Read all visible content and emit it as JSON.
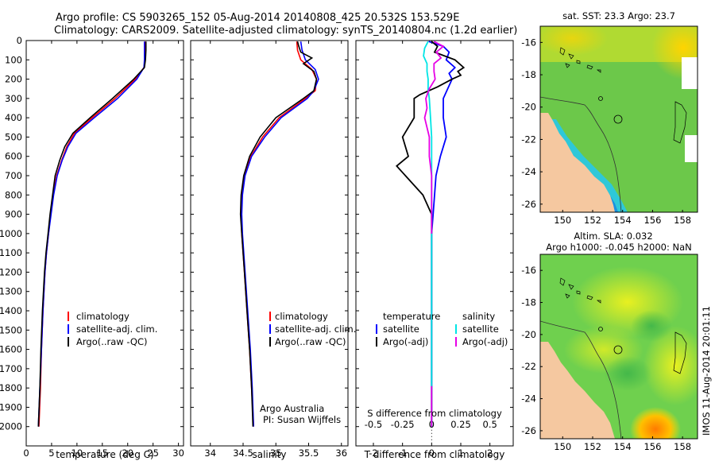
{
  "header": {
    "line1": "Argo profile: CS 5903265_152 05-Aug-2014 20140808_425 20.532S 153.529E",
    "line2": "Climatology: CARS2009. Satellite-adjusted climatology: synTS_20140804.nc (1.2d earlier)"
  },
  "footer": {
    "credit1": "Argo Australia",
    "credit2": "PI: Susan Wijffels",
    "stamp": "IMOS 11-Aug-2014 20:01:11"
  },
  "colors": {
    "climatology": "#ff0000",
    "satellite": "#0000ff",
    "argo": "#000000",
    "sal_satellite": "#00e5e5",
    "sal_argo": "#e600e6",
    "land": "#f5c8a0"
  },
  "chart_data": [
    {
      "type": "line",
      "xlabel": "temperature (deg C)",
      "ylabel": "",
      "xlim": [
        0,
        31
      ],
      "ylim": [
        2100,
        0
      ],
      "xticks": [
        0,
        5,
        10,
        15,
        20,
        25,
        30
      ],
      "yticks": [
        0,
        100,
        200,
        300,
        400,
        500,
        600,
        700,
        800,
        900,
        1000,
        1100,
        1200,
        1300,
        1400,
        1500,
        1600,
        1700,
        1800,
        1900,
        2000
      ],
      "legend": [
        "climatology",
        "satellite-adj. clim.",
        "Argo(..raw -QC)"
      ],
      "series": [
        {
          "name": "climatology",
          "color": "red",
          "depth": [
            5,
            50,
            100,
            140,
            200,
            300,
            400,
            480,
            550,
            620,
            700,
            800,
            900,
            1000,
            1100,
            1200,
            1400,
            1600,
            1800,
            2000
          ],
          "values": [
            23.5,
            23.5,
            23.4,
            23.2,
            21.5,
            17.5,
            13.0,
            9.5,
            8.0,
            7.0,
            6.0,
            5.3,
            4.8,
            4.4,
            4.0,
            3.7,
            3.3,
            3.0,
            2.8,
            2.5
          ]
        },
        {
          "name": "satellite-adj. clim.",
          "color": "blue",
          "depth": [
            5,
            50,
            100,
            140,
            200,
            300,
            400,
            480,
            550,
            620,
            700,
            800,
            900,
            1000,
            1100,
            1200,
            1400,
            1600,
            1800,
            2000
          ],
          "values": [
            23.3,
            23.3,
            23.3,
            23.2,
            21.8,
            18.0,
            13.4,
            9.8,
            8.2,
            7.1,
            6.1,
            5.4,
            4.9,
            4.4,
            4.0,
            3.7,
            3.3,
            3.0,
            2.7,
            2.4
          ]
        },
        {
          "name": "Argo(..raw -QC)",
          "color": "black",
          "depth": [
            5,
            50,
            100,
            140,
            200,
            300,
            400,
            480,
            550,
            620,
            700,
            800,
            900,
            1000,
            1100,
            1200,
            1400,
            1600,
            1800,
            2000
          ],
          "values": [
            23.6,
            23.6,
            23.5,
            23.3,
            21.2,
            17.0,
            12.6,
            9.2,
            7.6,
            6.6,
            5.7,
            5.2,
            4.7,
            4.3,
            3.9,
            3.6,
            3.2,
            2.9,
            2.7,
            2.4
          ]
        }
      ]
    },
    {
      "type": "line",
      "xlabel": "salinity",
      "ylabel": "",
      "xlim": [
        33.7,
        36.1
      ],
      "ylim": [
        2100,
        0
      ],
      "xticks": [
        34,
        34.5,
        35,
        35.5,
        36
      ],
      "legend": [
        "climatology",
        "satellite-adj. clim.",
        "Argo(..raw -QC)"
      ],
      "series": [
        {
          "name": "climatology",
          "color": "red",
          "depth": [
            5,
            50,
            100,
            150,
            200,
            260,
            300,
            400,
            500,
            600,
            700,
            800,
            900,
            1000,
            1200,
            1400,
            1600,
            1800,
            2000
          ],
          "values": [
            35.32,
            35.33,
            35.38,
            35.55,
            35.62,
            35.6,
            35.45,
            35.05,
            34.8,
            34.62,
            34.52,
            34.48,
            34.47,
            34.48,
            34.52,
            34.56,
            34.6,
            34.63,
            34.66
          ]
        },
        {
          "name": "satellite-adj. clim.",
          "color": "blue",
          "depth": [
            5,
            50,
            100,
            150,
            200,
            260,
            300,
            400,
            500,
            600,
            700,
            800,
            900,
            1000,
            1200,
            1400,
            1600,
            1800,
            2000
          ],
          "values": [
            35.38,
            35.4,
            35.45,
            35.6,
            35.65,
            35.58,
            35.48,
            35.08,
            34.83,
            34.63,
            34.53,
            34.49,
            34.48,
            34.49,
            34.53,
            34.57,
            34.61,
            34.64,
            34.66
          ]
        },
        {
          "name": "Argo(..raw -QC)",
          "color": "black",
          "depth": [
            5,
            30,
            60,
            90,
            120,
            160,
            200,
            260,
            300,
            400,
            500,
            600,
            700,
            800,
            900,
            1000,
            1200,
            1400,
            1600,
            1800,
            2000
          ],
          "values": [
            35.33,
            35.35,
            35.38,
            35.55,
            35.42,
            35.58,
            35.62,
            35.58,
            35.42,
            35.0,
            34.76,
            34.6,
            34.51,
            34.47,
            34.46,
            34.48,
            34.52,
            34.56,
            34.6,
            34.63,
            34.65
          ]
        }
      ]
    },
    {
      "type": "line",
      "xlabel": "T difference from climatology",
      "xlabel_top": "S difference from climatology",
      "xlim": [
        -2.6,
        2.8
      ],
      "xlim_top": [
        -0.65,
        0.7
      ],
      "xticks": [
        -2,
        -1,
        0,
        1,
        2
      ],
      "xticks_top": [
        -0.5,
        -0.25,
        0,
        0.25,
        0.5
      ],
      "ylim": [
        2100,
        0
      ],
      "legend_temperature": {
        "title": "temperature",
        "items": [
          "satellite",
          "Argo(-adj)"
        ]
      },
      "legend_salinity": {
        "title": "salinity",
        "items": [
          "satellite",
          "Argo(-adj)"
        ]
      },
      "series": [
        {
          "name": "temperature satellite",
          "color": "blue",
          "depth": [
            5,
            30,
            60,
            100,
            140,
            170,
            200,
            300,
            400,
            500,
            600,
            700,
            800,
            900,
            1000,
            1500,
            2000
          ],
          "values": [
            -0.1,
            0.4,
            0.6,
            0.5,
            0.8,
            0.6,
            0.7,
            0.4,
            0.4,
            0.5,
            0.3,
            0.15,
            0.1,
            0.05,
            0.0,
            0.0,
            0.0
          ]
        },
        {
          "name": "temperature Argo(-adj)",
          "color": "black",
          "depth": [
            5,
            30,
            60,
            100,
            140,
            160,
            180,
            200,
            240,
            280,
            300,
            400,
            500,
            600,
            650,
            700,
            750,
            800,
            900,
            1000,
            1500,
            2000
          ],
          "values": [
            0.0,
            0.2,
            0.1,
            0.8,
            1.1,
            0.9,
            1.0,
            0.7,
            0.2,
            -0.4,
            -0.6,
            -0.6,
            -1.0,
            -0.8,
            -1.2,
            -0.9,
            -0.6,
            -0.3,
            0.0,
            0.0,
            0.0,
            0.0
          ]
        },
        {
          "name": "salinity satellite",
          "color": "cyan",
          "depth": [
            5,
            40,
            80,
            120,
            160,
            200,
            260,
            300,
            400,
            500,
            600,
            800,
            1000,
            1500,
            2000
          ],
          "values": [
            -0.03,
            -0.06,
            -0.07,
            -0.04,
            -0.04,
            -0.03,
            -0.03,
            -0.02,
            -0.01,
            0.0,
            0.0,
            0.0,
            0.0,
            0.0,
            0.0
          ]
        },
        {
          "name": "salinity Argo(-adj)",
          "color": "magenta",
          "depth": [
            5,
            30,
            60,
            90,
            120,
            160,
            200,
            250,
            300,
            350,
            400,
            500,
            600,
            700,
            800,
            1000,
            1200,
            1500,
            2000
          ],
          "values": [
            0.02,
            0.1,
            0.04,
            0.08,
            0.02,
            0.02,
            0.03,
            -0.02,
            -0.05,
            -0.04,
            -0.06,
            -0.02,
            -0.02,
            0.0,
            0.0,
            0.0,
            0.0,
            0.0,
            0.0
          ]
        }
      ]
    },
    {
      "type": "heatmap",
      "title": "sat. SST: 23.3 Argo: 23.7",
      "xlim": [
        148.5,
        159
      ],
      "ylim": [
        -26.5,
        -15
      ],
      "xticks": [
        150,
        152,
        154,
        156,
        158
      ],
      "yticks": [
        -16,
        -18,
        -20,
        -22,
        -24,
        -26
      ],
      "float_position": [
        153.529,
        -20.532
      ]
    },
    {
      "type": "heatmap",
      "title_line1": "Altim. SLA: 0.032",
      "title_line2": "Argo h1000: -0.045 h2000: NaN",
      "xlim": [
        148.5,
        159
      ],
      "ylim": [
        -26.5,
        -15
      ],
      "xticks": [
        150,
        152,
        154,
        156,
        158
      ],
      "yticks": [
        -16,
        -18,
        -20,
        -22,
        -24,
        -26
      ],
      "float_position": [
        153.529,
        -20.532
      ]
    }
  ]
}
